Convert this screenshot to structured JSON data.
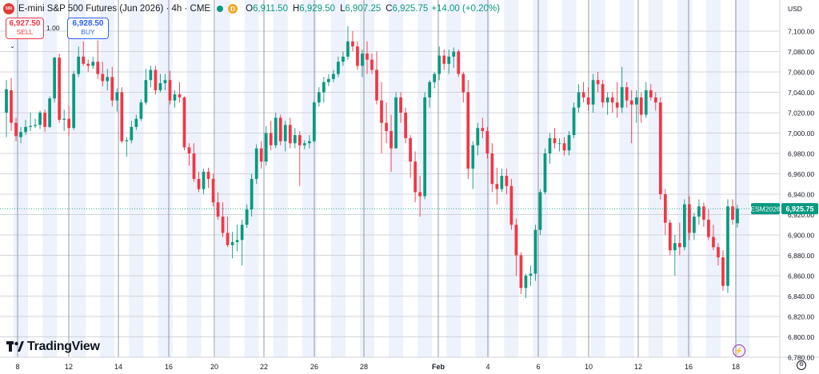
{
  "header": {
    "logo_text": "500",
    "title": "E-mini S&P 500 Futures (Jun 2026) · 4h · CME",
    "badge_letter": "D",
    "open_label": "O",
    "open": "6,911.50",
    "high_label": "H",
    "high": "6,929.50",
    "low_label": "L",
    "low": "6,907.25",
    "close_label": "C",
    "close": "6,925.75",
    "change": "+14.00 (+0.20%)"
  },
  "trade": {
    "sell_price": "6,927.50",
    "sell_label": "SELL",
    "quantity": "1.00",
    "buy_price": "6,928.50",
    "buy_label": "BUY",
    "collapse_icon": "chevron-down-icon"
  },
  "footer": {
    "brand": "TradingView",
    "brand_icon": "tradingview-logo-icon",
    "settings_icon": "gear-icon",
    "alert_icon": "lightning-icon"
  },
  "colors": {
    "up": "#089981",
    "down": "#f23645",
    "grid": "#c7c9d1",
    "band": "#eef2fc",
    "price_tag": "#089981"
  },
  "chart_data": {
    "type": "candlestick",
    "currency": "USD",
    "symbol_tag": "ESM2026",
    "last_price": "6,925.75",
    "ylim": [
      6780,
      7120
    ],
    "y_ticks": [
      "7,100.00",
      "7,080.00",
      "7,060.00",
      "7,040.00",
      "7,020.00",
      "7,000.00",
      "6,980.00",
      "6,960.00",
      "6,940.00",
      "6,920.00",
      "6,900.00",
      "6,880.00",
      "6,860.00",
      "6,840.00",
      "6,820.00",
      "6,800.00",
      "6,780.00"
    ],
    "x_ticks": [
      "8",
      "12",
      "14",
      "16",
      "20",
      "22",
      "26",
      "28",
      "Feb",
      "4",
      "6",
      "10",
      "12",
      "16",
      "18"
    ],
    "candles": [
      {
        "o": 7020,
        "h": 7052,
        "l": 6996,
        "c": 7043
      },
      {
        "o": 7042,
        "h": 7054,
        "l": 7002,
        "c": 7010
      },
      {
        "o": 7010,
        "h": 7015,
        "l": 6992,
        "c": 6997
      },
      {
        "o": 6996,
        "h": 7006,
        "l": 6990,
        "c": 7001
      },
      {
        "o": 7001,
        "h": 7013,
        "l": 6998,
        "c": 7006
      },
      {
        "o": 7006,
        "h": 7020,
        "l": 7002,
        "c": 7007
      },
      {
        "o": 7007,
        "h": 7014,
        "l": 7005,
        "c": 7008
      },
      {
        "o": 7008,
        "h": 7022,
        "l": 7004,
        "c": 7020
      },
      {
        "o": 7020,
        "h": 7023,
        "l": 7001,
        "c": 7006
      },
      {
        "o": 7006,
        "h": 7036,
        "l": 7005,
        "c": 7034
      },
      {
        "o": 7034,
        "h": 7075,
        "l": 7030,
        "c": 7074
      },
      {
        "o": 7074,
        "h": 7078,
        "l": 7010,
        "c": 7013
      },
      {
        "o": 7013,
        "h": 7023,
        "l": 7002,
        "c": 7014
      },
      {
        "o": 7014,
        "h": 7027,
        "l": 6997,
        "c": 7005
      },
      {
        "o": 7005,
        "h": 7061,
        "l": 7003,
        "c": 7058
      },
      {
        "o": 7058,
        "h": 7085,
        "l": 7055,
        "c": 7075
      },
      {
        "o": 7075,
        "h": 7090,
        "l": 7066,
        "c": 7068
      },
      {
        "o": 7068,
        "h": 7072,
        "l": 7060,
        "c": 7066
      },
      {
        "o": 7066,
        "h": 7075,
        "l": 7063,
        "c": 7070
      },
      {
        "o": 7070,
        "h": 7091,
        "l": 7053,
        "c": 7058
      },
      {
        "o": 7058,
        "h": 7070,
        "l": 7046,
        "c": 7051
      },
      {
        "o": 7051,
        "h": 7063,
        "l": 7042,
        "c": 7055
      },
      {
        "o": 7055,
        "h": 7065,
        "l": 7026,
        "c": 7032
      },
      {
        "o": 7032,
        "h": 7044,
        "l": 7021,
        "c": 7040
      },
      {
        "o": 7040,
        "h": 7045,
        "l": 6990,
        "c": 6992
      },
      {
        "o": 6992,
        "h": 6996,
        "l": 6977,
        "c": 6993
      },
      {
        "o": 6993,
        "h": 7012,
        "l": 6990,
        "c": 7006
      },
      {
        "o": 7006,
        "h": 7018,
        "l": 7003,
        "c": 7014
      },
      {
        "o": 7014,
        "h": 7033,
        "l": 7012,
        "c": 7030
      },
      {
        "o": 7030,
        "h": 7063,
        "l": 7028,
        "c": 7052
      },
      {
        "o": 7052,
        "h": 7066,
        "l": 7045,
        "c": 7062
      },
      {
        "o": 7062,
        "h": 7066,
        "l": 7038,
        "c": 7042
      },
      {
        "o": 7042,
        "h": 7058,
        "l": 7040,
        "c": 7049
      },
      {
        "o": 7049,
        "h": 7058,
        "l": 7042,
        "c": 7052
      },
      {
        "o": 7052,
        "h": 7061,
        "l": 7028,
        "c": 7032
      },
      {
        "o": 7032,
        "h": 7042,
        "l": 7025,
        "c": 7038
      },
      {
        "o": 7038,
        "h": 7050,
        "l": 7030,
        "c": 7035
      },
      {
        "o": 7035,
        "h": 7036,
        "l": 6983,
        "c": 6986
      },
      {
        "o": 6986,
        "h": 6990,
        "l": 6968,
        "c": 6980
      },
      {
        "o": 6980,
        "h": 6990,
        "l": 6952,
        "c": 6955
      },
      {
        "o": 6955,
        "h": 6962,
        "l": 6942,
        "c": 6945
      },
      {
        "o": 6945,
        "h": 6965,
        "l": 6940,
        "c": 6962
      },
      {
        "o": 6962,
        "h": 6966,
        "l": 6946,
        "c": 6955
      },
      {
        "o": 6955,
        "h": 6960,
        "l": 6928,
        "c": 6932
      },
      {
        "o": 6932,
        "h": 6942,
        "l": 6915,
        "c": 6918
      },
      {
        "o": 6918,
        "h": 6932,
        "l": 6898,
        "c": 6902
      },
      {
        "o": 6902,
        "h": 6918,
        "l": 6888,
        "c": 6890
      },
      {
        "o": 6890,
        "h": 6903,
        "l": 6877,
        "c": 6893
      },
      {
        "o": 6893,
        "h": 6910,
        "l": 6884,
        "c": 6895
      },
      {
        "o": 6895,
        "h": 6915,
        "l": 6870,
        "c": 6910
      },
      {
        "o": 6910,
        "h": 6930,
        "l": 6907,
        "c": 6925
      },
      {
        "o": 6925,
        "h": 6960,
        "l": 6918,
        "c": 6955
      },
      {
        "o": 6955,
        "h": 6989,
        "l": 6950,
        "c": 6985
      },
      {
        "o": 6985,
        "h": 6992,
        "l": 6965,
        "c": 6972
      },
      {
        "o": 6972,
        "h": 7007,
        "l": 6968,
        "c": 7000
      },
      {
        "o": 7000,
        "h": 7012,
        "l": 6983,
        "c": 6988
      },
      {
        "o": 6988,
        "h": 7020,
        "l": 6985,
        "c": 7015
      },
      {
        "o": 7015,
        "h": 7018,
        "l": 6988,
        "c": 6992
      },
      {
        "o": 6992,
        "h": 7012,
        "l": 6982,
        "c": 7008
      },
      {
        "o": 7008,
        "h": 7015,
        "l": 6985,
        "c": 6990
      },
      {
        "o": 6990,
        "h": 7005,
        "l": 6985,
        "c": 6998
      },
      {
        "o": 6998,
        "h": 7002,
        "l": 6948,
        "c": 6988
      },
      {
        "o": 6988,
        "h": 6993,
        "l": 6984,
        "c": 6990
      },
      {
        "o": 6990,
        "h": 6998,
        "l": 6985,
        "c": 6992
      },
      {
        "o": 6992,
        "h": 7032,
        "l": 6990,
        "c": 7030
      },
      {
        "o": 7030,
        "h": 7045,
        "l": 7026,
        "c": 7040
      },
      {
        "o": 7040,
        "h": 7055,
        "l": 7030,
        "c": 7050
      },
      {
        "o": 7050,
        "h": 7058,
        "l": 7046,
        "c": 7053
      },
      {
        "o": 7053,
        "h": 7062,
        "l": 7050,
        "c": 7058
      },
      {
        "o": 7058,
        "h": 7075,
        "l": 7055,
        "c": 7070
      },
      {
        "o": 7070,
        "h": 7080,
        "l": 7066,
        "c": 7075
      },
      {
        "o": 7075,
        "h": 7105,
        "l": 7072,
        "c": 7090
      },
      {
        "o": 7090,
        "h": 7100,
        "l": 7080,
        "c": 7085
      },
      {
        "o": 7085,
        "h": 7090,
        "l": 7062,
        "c": 7066
      },
      {
        "o": 7066,
        "h": 7082,
        "l": 7055,
        "c": 7078
      },
      {
        "o": 7078,
        "h": 7090,
        "l": 7058,
        "c": 7072
      },
      {
        "o": 7072,
        "h": 7078,
        "l": 7058,
        "c": 7062
      },
      {
        "o": 7062,
        "h": 7080,
        "l": 7028,
        "c": 7032
      },
      {
        "o": 7032,
        "h": 7050,
        "l": 6980,
        "c": 7010
      },
      {
        "o": 7010,
        "h": 7030,
        "l": 6990,
        "c": 7002
      },
      {
        "o": 7002,
        "h": 7018,
        "l": 6962,
        "c": 6985
      },
      {
        "o": 6985,
        "h": 7040,
        "l": 6985,
        "c": 7035
      },
      {
        "o": 7035,
        "h": 7040,
        "l": 7010,
        "c": 7020
      },
      {
        "o": 7020,
        "h": 7025,
        "l": 6990,
        "c": 6995
      },
      {
        "o": 6995,
        "h": 6998,
        "l": 6956,
        "c": 6972
      },
      {
        "o": 6972,
        "h": 6982,
        "l": 6932,
        "c": 6942
      },
      {
        "o": 6942,
        "h": 6958,
        "l": 6918,
        "c": 6938
      },
      {
        "o": 6938,
        "h": 7040,
        "l": 6935,
        "c": 7035
      },
      {
        "o": 7035,
        "h": 7052,
        "l": 7025,
        "c": 7050
      },
      {
        "o": 7050,
        "h": 7060,
        "l": 7044,
        "c": 7058
      },
      {
        "o": 7058,
        "h": 7085,
        "l": 7052,
        "c": 7076
      },
      {
        "o": 7076,
        "h": 7082,
        "l": 7062,
        "c": 7068
      },
      {
        "o": 7068,
        "h": 7082,
        "l": 7058,
        "c": 7075
      },
      {
        "o": 7075,
        "h": 7084,
        "l": 7064,
        "c": 7080
      },
      {
        "o": 7080,
        "h": 7082,
        "l": 7055,
        "c": 7058
      },
      {
        "o": 7058,
        "h": 7060,
        "l": 7030,
        "c": 7040
      },
      {
        "o": 7040,
        "h": 7052,
        "l": 6955,
        "c": 6965
      },
      {
        "o": 6965,
        "h": 6992,
        "l": 6945,
        "c": 6988
      },
      {
        "o": 6988,
        "h": 7010,
        "l": 6978,
        "c": 7005
      },
      {
        "o": 7005,
        "h": 7015,
        "l": 6995,
        "c": 7002
      },
      {
        "o": 7002,
        "h": 7006,
        "l": 6975,
        "c": 6980
      },
      {
        "o": 6980,
        "h": 6990,
        "l": 6942,
        "c": 6950
      },
      {
        "o": 6950,
        "h": 6966,
        "l": 6930,
        "c": 6945
      },
      {
        "o": 6945,
        "h": 6965,
        "l": 6942,
        "c": 6958
      },
      {
        "o": 6958,
        "h": 6965,
        "l": 6940,
        "c": 6948
      },
      {
        "o": 6948,
        "h": 6955,
        "l": 6905,
        "c": 6910
      },
      {
        "o": 6910,
        "h": 6916,
        "l": 6860,
        "c": 6880
      },
      {
        "o": 6880,
        "h": 6883,
        "l": 6842,
        "c": 6848
      },
      {
        "o": 6848,
        "h": 6862,
        "l": 6838,
        "c": 6860
      },
      {
        "o": 6860,
        "h": 6870,
        "l": 6850,
        "c": 6862
      },
      {
        "o": 6862,
        "h": 6910,
        "l": 6855,
        "c": 6905
      },
      {
        "o": 6905,
        "h": 6945,
        "l": 6900,
        "c": 6942
      },
      {
        "o": 6942,
        "h": 6985,
        "l": 6940,
        "c": 6980
      },
      {
        "o": 6980,
        "h": 7000,
        "l": 6970,
        "c": 6995
      },
      {
        "o": 6995,
        "h": 7005,
        "l": 6985,
        "c": 6990
      },
      {
        "o": 6990,
        "h": 6995,
        "l": 6982,
        "c": 6990
      },
      {
        "o": 6990,
        "h": 6996,
        "l": 6978,
        "c": 6983
      },
      {
        "o": 6983,
        "h": 7002,
        "l": 6978,
        "c": 6998
      },
      {
        "o": 6998,
        "h": 7030,
        "l": 6995,
        "c": 7025
      },
      {
        "o": 7025,
        "h": 7048,
        "l": 7020,
        "c": 7040
      },
      {
        "o": 7040,
        "h": 7050,
        "l": 7030,
        "c": 7035
      },
      {
        "o": 7035,
        "h": 7045,
        "l": 7022,
        "c": 7028
      },
      {
        "o": 7028,
        "h": 7058,
        "l": 7020,
        "c": 7052
      },
      {
        "o": 7052,
        "h": 7060,
        "l": 7040,
        "c": 7048
      },
      {
        "o": 7048,
        "h": 7052,
        "l": 7025,
        "c": 7030
      },
      {
        "o": 7030,
        "h": 7040,
        "l": 7018,
        "c": 7035
      },
      {
        "o": 7035,
        "h": 7040,
        "l": 7020,
        "c": 7030
      },
      {
        "o": 7030,
        "h": 7050,
        "l": 7015,
        "c": 7025
      },
      {
        "o": 7025,
        "h": 7065,
        "l": 7020,
        "c": 7045
      },
      {
        "o": 7045,
        "h": 7050,
        "l": 7025,
        "c": 7032
      },
      {
        "o": 7032,
        "h": 7042,
        "l": 6990,
        "c": 7028
      },
      {
        "o": 7028,
        "h": 7042,
        "l": 7010,
        "c": 7035
      },
      {
        "o": 7035,
        "h": 7040,
        "l": 7010,
        "c": 7018
      },
      {
        "o": 7018,
        "h": 7050,
        "l": 7015,
        "c": 7042
      },
      {
        "o": 7042,
        "h": 7048,
        "l": 7032,
        "c": 7035
      },
      {
        "o": 7035,
        "h": 7040,
        "l": 7022,
        "c": 7030
      },
      {
        "o": 7030,
        "h": 7035,
        "l": 6935,
        "c": 6940
      },
      {
        "o": 6940,
        "h": 6945,
        "l": 6900,
        "c": 6912
      },
      {
        "o": 6912,
        "h": 6915,
        "l": 6880,
        "c": 6885
      },
      {
        "o": 6885,
        "h": 6900,
        "l": 6860,
        "c": 6892
      },
      {
        "o": 6892,
        "h": 6912,
        "l": 6880,
        "c": 6888
      },
      {
        "o": 6888,
        "h": 6935,
        "l": 6885,
        "c": 6930
      },
      {
        "o": 6930,
        "h": 6938,
        "l": 6895,
        "c": 6902
      },
      {
        "o": 6902,
        "h": 6922,
        "l": 6895,
        "c": 6918
      },
      {
        "o": 6918,
        "h": 6935,
        "l": 6910,
        "c": 6928
      },
      {
        "o": 6928,
        "h": 6932,
        "l": 6908,
        "c": 6915
      },
      {
        "o": 6915,
        "h": 6925,
        "l": 6895,
        "c": 6898
      },
      {
        "o": 6898,
        "h": 6910,
        "l": 6885,
        "c": 6888
      },
      {
        "o": 6888,
        "h": 6892,
        "l": 6870,
        "c": 6878
      },
      {
        "o": 6878,
        "h": 6885,
        "l": 6845,
        "c": 6850
      },
      {
        "o": 6850,
        "h": 6935,
        "l": 6843,
        "c": 6928
      },
      {
        "o": 6928,
        "h": 6935,
        "l": 6910,
        "c": 6915
      },
      {
        "o": 6911.5,
        "h": 6929.5,
        "l": 6907.25,
        "c": 6925.75
      }
    ]
  }
}
